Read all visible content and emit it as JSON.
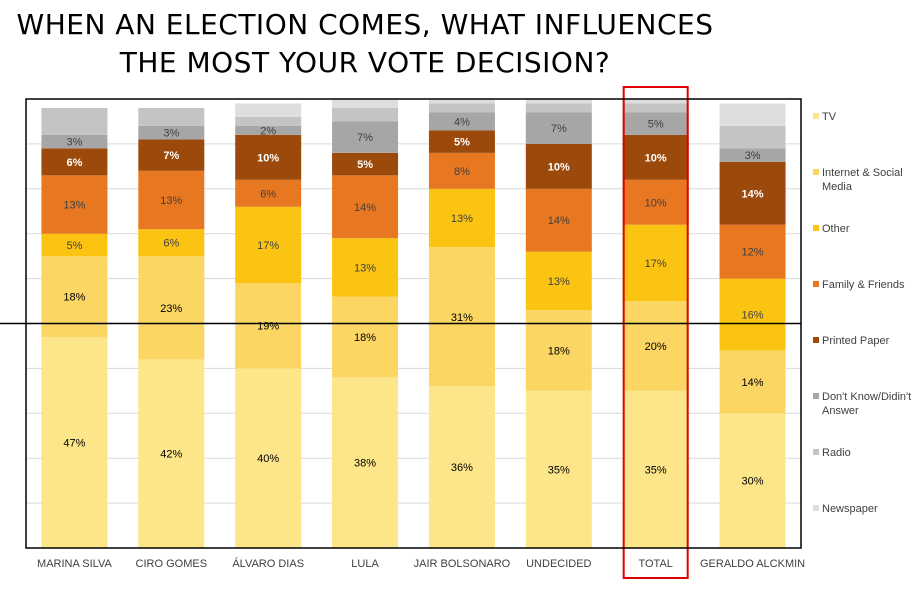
{
  "chart_data": {
    "type": "bar",
    "stacked": true,
    "title": "WHEN AN ELECTION COMES, WHAT INFLUENCES THE MOST YOUR VOTE DECISION?",
    "categories": [
      "MARINA SILVA",
      "CIRO GOMES",
      "ÁLVARO DIAS",
      "LULA",
      "JAIR BOLSONARO",
      "UNDECIDED",
      "TOTAL",
      "GERALDO ALCKMIN"
    ],
    "highlighted_category": "TOTAL",
    "highlight_color": "#e00000",
    "ylim": [
      0,
      100
    ],
    "reference_line": 50,
    "grid": true,
    "legend_position": "right",
    "series": [
      {
        "name": "TV",
        "color": "#fde68a",
        "values": [
          47,
          42,
          40,
          38,
          36,
          35,
          35,
          30
        ],
        "labels": [
          "47%",
          "42%",
          "40%",
          "38%",
          "36%",
          "35%",
          "35%",
          "30%"
        ],
        "bold": false,
        "label_color": "#000000"
      },
      {
        "name": "Internet  & Social Media",
        "color": "#fcd663",
        "values": [
          18,
          23,
          19,
          18,
          31,
          18,
          20,
          14
        ],
        "labels": [
          "18%",
          "23%",
          "19%",
          "18%",
          "31%",
          "18%",
          "20%",
          "14%"
        ],
        "bold": false,
        "label_color": "#000000"
      },
      {
        "name": "Other",
        "color": "#fcc412",
        "values": [
          5,
          6,
          17,
          13,
          13,
          13,
          17,
          16
        ],
        "labels": [
          "5%",
          "6%",
          "17%",
          "13%",
          "13%",
          "13%",
          "17%",
          "16%"
        ],
        "bold": false,
        "label_color": "#404040"
      },
      {
        "name": "Family & Friends",
        "color": "#e87722",
        "values": [
          13,
          13,
          6,
          14,
          8,
          14,
          10,
          12
        ],
        "labels": [
          "13%",
          "13%",
          "6%",
          "14%",
          "8%",
          "14%",
          "10%",
          "12%"
        ],
        "bold": false,
        "label_color": "#404040"
      },
      {
        "name": "Printed Paper",
        "color": "#9c4a0c",
        "values": [
          6,
          7,
          10,
          5,
          5,
          10,
          10,
          14
        ],
        "labels": [
          "6%",
          "7%",
          "10%",
          "5%",
          "5%",
          "10%",
          "10%",
          "14%"
        ],
        "bold": true,
        "label_color": "#ffffff"
      },
      {
        "name": "Don't Know/Didin't Answer",
        "color": "#a6a6a6",
        "values": [
          3,
          3,
          2,
          7,
          4,
          7,
          5,
          3
        ],
        "labels": [
          "3%",
          "3%",
          "2%",
          "7%",
          "4%",
          "7%",
          "5%",
          "3%"
        ],
        "bold": false,
        "label_color": "#404040"
      },
      {
        "name": "Radio",
        "color": "#c4c4c4",
        "values": [
          6,
          4,
          2,
          3,
          2,
          2,
          2,
          5
        ],
        "labels": [
          "",
          "",
          "",
          "",
          "",
          "",
          "",
          ""
        ],
        "bold": false,
        "label_color": "#404040"
      },
      {
        "name": "Newspaper",
        "color": "#dedede",
        "values": [
          0,
          0,
          3,
          2,
          1,
          1,
          1,
          5
        ],
        "labels": [
          "",
          "",
          "",
          "",
          "",
          "",
          "",
          ""
        ],
        "bold": false,
        "label_color": "#404040"
      }
    ]
  }
}
